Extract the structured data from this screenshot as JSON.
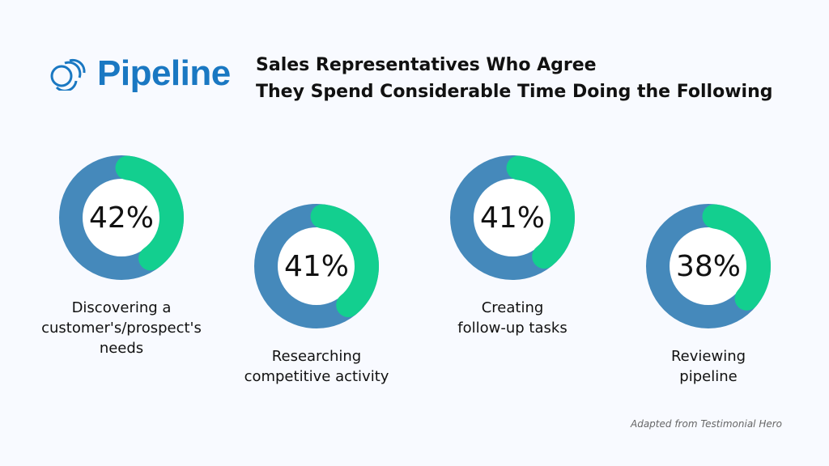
{
  "logo": {
    "text": "Pipeline"
  },
  "title": {
    "line1": "Sales Representatives Who Agree",
    "line2": "They Spend Considerable Time Doing the Following"
  },
  "source": "Adapted from Testimonial Hero",
  "colors": {
    "remainder": "#4589bb",
    "value": "#13cf8f",
    "brand": "#1a78c2",
    "background": "#f8faff"
  },
  "chart_data": {
    "type": "pie",
    "variant": "donut",
    "title": "Sales Representatives Who Agree They Spend Considerable Time Doing the Following",
    "items": [
      {
        "label": "Discovering a customer's/prospect's needs",
        "value": 42,
        "display": "42%",
        "lines": [
          "Discovering a",
          "customer's/prospect's",
          "needs"
        ]
      },
      {
        "label": "Researching competitive activity",
        "value": 41,
        "display": "41%",
        "lines": [
          "Researching",
          "competitive activity"
        ]
      },
      {
        "label": "Creating follow-up tasks",
        "value": 41,
        "display": "41%",
        "lines": [
          "Creating",
          "follow-up tasks"
        ]
      },
      {
        "label": "Reviewing pipeline",
        "value": 38,
        "display": "38%",
        "lines": [
          "Reviewing",
          "pipeline"
        ]
      }
    ]
  }
}
